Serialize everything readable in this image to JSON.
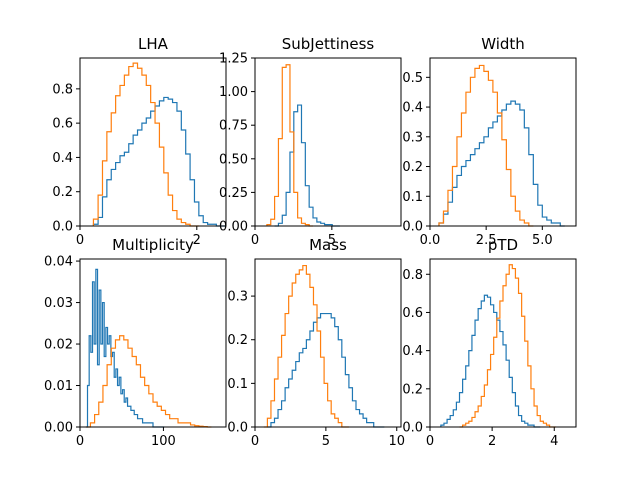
{
  "chart_data": [
    {
      "type": "histogram",
      "title": "LHA",
      "xlim": [
        0,
        2.5
      ],
      "ylim": [
        0,
        0.98
      ],
      "xticks": [
        0,
        2
      ],
      "xtick_labels": [
        "0",
        "2"
      ],
      "yticks": [
        0,
        0.2,
        0.4,
        0.6,
        0.8
      ],
      "ytick_labels": [
        "0.0",
        "0.2",
        "0.4",
        "0.6",
        "0.8"
      ],
      "series": [
        {
          "color": "#1f77b4",
          "x": [
            0.27,
            0.35,
            0.42,
            0.5,
            0.57,
            0.65,
            0.72,
            0.8,
            0.87,
            0.95,
            1.02,
            1.1,
            1.17,
            1.25,
            1.32,
            1.4,
            1.47,
            1.55,
            1.62,
            1.7,
            1.77,
            1.85,
            1.92,
            2.0,
            2.07,
            2.15,
            2.22,
            2.3,
            2.37,
            2.45
          ],
          "y": [
            0.01,
            0.05,
            0.17,
            0.27,
            0.33,
            0.37,
            0.41,
            0.43,
            0.48,
            0.53,
            0.56,
            0.6,
            0.63,
            0.67,
            0.7,
            0.73,
            0.75,
            0.74,
            0.72,
            0.67,
            0.56,
            0.42,
            0.27,
            0.14,
            0.06,
            0.02,
            0.01,
            0.01,
            0.0,
            0.0
          ]
        },
        {
          "color": "#ff7f0e",
          "x": [
            0.27,
            0.35,
            0.42,
            0.5,
            0.57,
            0.65,
            0.72,
            0.8,
            0.87,
            0.95,
            1.02,
            1.1,
            1.17,
            1.25,
            1.32,
            1.4,
            1.47,
            1.55,
            1.62,
            1.7,
            1.77,
            1.85,
            1.92,
            2.0
          ],
          "y": [
            0.04,
            0.18,
            0.38,
            0.55,
            0.66,
            0.76,
            0.82,
            0.88,
            0.93,
            0.95,
            0.92,
            0.88,
            0.82,
            0.72,
            0.6,
            0.46,
            0.31,
            0.18,
            0.09,
            0.04,
            0.02,
            0.01,
            0.0,
            0.0
          ]
        }
      ]
    },
    {
      "type": "histogram",
      "title": "SubJettiness",
      "xlim": [
        0,
        9.5
      ],
      "ylim": [
        0,
        1.25
      ],
      "xticks": [
        0,
        5
      ],
      "xtick_labels": [
        "0",
        "5"
      ],
      "yticks": [
        0,
        0.25,
        0.5,
        0.75,
        1.0,
        1.25
      ],
      "ytick_labels": [
        "0.00",
        "0.25",
        "0.50",
        "0.75",
        "1.00",
        "1.25"
      ],
      "series": [
        {
          "color": "#1f77b4",
          "x": [
            1.4,
            1.65,
            1.9,
            2.15,
            2.4,
            2.65,
            2.9,
            3.15,
            3.4,
            3.65,
            3.9,
            4.15,
            4.4,
            4.65,
            4.9,
            5.15,
            5.4
          ],
          "y": [
            0.0,
            0.02,
            0.08,
            0.25,
            0.55,
            0.85,
            0.9,
            0.62,
            0.3,
            0.14,
            0.06,
            0.03,
            0.02,
            0.01,
            0.01,
            0.0,
            0.0
          ]
        },
        {
          "color": "#ff7f0e",
          "x": [
            0.9,
            1.15,
            1.4,
            1.65,
            1.9,
            2.15,
            2.4,
            2.65,
            2.9,
            3.15,
            3.4,
            3.65
          ],
          "y": [
            0.01,
            0.05,
            0.22,
            0.65,
            1.18,
            1.2,
            0.7,
            0.25,
            0.06,
            0.02,
            0.01,
            0.0
          ]
        }
      ]
    },
    {
      "type": "histogram",
      "title": "Width",
      "xlim": [
        0,
        6.5
      ],
      "ylim": [
        0,
        0.565
      ],
      "xticks": [
        0,
        2.5,
        5
      ],
      "xtick_labels": [
        "0.0",
        "2.5",
        "5.0"
      ],
      "yticks": [
        0,
        0.1,
        0.2,
        0.3,
        0.4,
        0.5
      ],
      "ytick_labels": [
        "0.0",
        "0.1",
        "0.2",
        "0.3",
        "0.4",
        "0.5"
      ],
      "series": [
        {
          "color": "#1f77b4",
          "x": [
            0.5,
            0.7,
            0.9,
            1.1,
            1.3,
            1.5,
            1.7,
            1.9,
            2.1,
            2.3,
            2.5,
            2.7,
            2.9,
            3.1,
            3.3,
            3.5,
            3.7,
            3.9,
            4.1,
            4.3,
            4.5,
            4.7,
            4.9,
            5.1,
            5.3,
            5.5,
            5.7,
            5.9
          ],
          "y": [
            0.01,
            0.04,
            0.08,
            0.13,
            0.17,
            0.2,
            0.22,
            0.24,
            0.26,
            0.28,
            0.3,
            0.33,
            0.35,
            0.37,
            0.39,
            0.41,
            0.42,
            0.41,
            0.39,
            0.33,
            0.24,
            0.14,
            0.07,
            0.03,
            0.02,
            0.01,
            0.01,
            0.0
          ]
        },
        {
          "color": "#ff7f0e",
          "x": [
            0.5,
            0.7,
            0.9,
            1.1,
            1.3,
            1.5,
            1.7,
            1.9,
            2.1,
            2.3,
            2.5,
            2.7,
            2.9,
            3.1,
            3.3,
            3.5,
            3.7,
            3.9,
            4.1,
            4.3,
            4.5
          ],
          "y": [
            0.01,
            0.05,
            0.12,
            0.2,
            0.3,
            0.38,
            0.45,
            0.5,
            0.53,
            0.54,
            0.52,
            0.49,
            0.45,
            0.38,
            0.29,
            0.19,
            0.1,
            0.05,
            0.02,
            0.01,
            0.0
          ]
        }
      ]
    },
    {
      "type": "histogram",
      "title": "Multiplicity",
      "xlim": [
        0,
        175
      ],
      "ylim": [
        0,
        0.0405
      ],
      "xticks": [
        0,
        100
      ],
      "xtick_labels": [
        "0",
        "100"
      ],
      "yticks": [
        0,
        0.01,
        0.02,
        0.03,
        0.04
      ],
      "ytick_labels": [
        "0.00",
        "0.01",
        "0.02",
        "0.03",
        "0.04"
      ],
      "series": [
        {
          "color": "#1f77b4",
          "x": [
            8,
            10,
            12,
            14,
            16,
            18,
            20,
            22,
            24,
            26,
            28,
            30,
            32,
            34,
            36,
            38,
            40,
            42,
            44,
            46,
            48,
            50,
            52,
            54,
            56,
            58,
            60,
            62,
            64,
            66,
            68,
            70,
            72,
            74,
            76,
            78,
            80,
            85,
            90,
            95,
            100
          ],
          "y": [
            0.0,
            0.01,
            0.022,
            0.018,
            0.035,
            0.02,
            0.038,
            0.015,
            0.033,
            0.02,
            0.03,
            0.017,
            0.024,
            0.02,
            0.022,
            0.017,
            0.018,
            0.012,
            0.014,
            0.01,
            0.012,
            0.008,
            0.009,
            0.006,
            0.007,
            0.005,
            0.005,
            0.004,
            0.004,
            0.003,
            0.003,
            0.002,
            0.002,
            0.002,
            0.001,
            0.001,
            0.001,
            0.001,
            0.0,
            0.0,
            0.0
          ]
        },
        {
          "color": "#ff7f0e",
          "x": [
            10,
            15,
            20,
            25,
            30,
            35,
            40,
            45,
            50,
            55,
            60,
            65,
            70,
            75,
            80,
            85,
            90,
            95,
            100,
            105,
            110,
            115,
            120,
            125,
            130,
            135,
            140,
            145,
            150,
            155
          ],
          "y": [
            0.0,
            0.001,
            0.003,
            0.006,
            0.01,
            0.015,
            0.019,
            0.021,
            0.022,
            0.021,
            0.019,
            0.017,
            0.015,
            0.012,
            0.01,
            0.008,
            0.006,
            0.005,
            0.004,
            0.003,
            0.002,
            0.002,
            0.001,
            0.001,
            0.001,
            0.0005,
            0.0003,
            0.0002,
            0.0001,
            0.0
          ]
        }
      ]
    },
    {
      "type": "histogram",
      "title": "Mass",
      "xlim": [
        0,
        10.3
      ],
      "ylim": [
        0,
        0.385
      ],
      "xticks": [
        0,
        5,
        10
      ],
      "xtick_labels": [
        "0",
        "5",
        "10"
      ],
      "yticks": [
        0,
        0.1,
        0.2,
        0.3
      ],
      "ytick_labels": [
        "0.0",
        "0.1",
        "0.2",
        "0.3"
      ],
      "series": [
        {
          "color": "#1f77b4",
          "x": [
            1.0,
            1.25,
            1.5,
            1.75,
            2.0,
            2.25,
            2.5,
            2.75,
            3.0,
            3.25,
            3.5,
            3.75,
            4.0,
            4.25,
            4.5,
            4.75,
            5.0,
            5.25,
            5.5,
            5.75,
            6.0,
            6.25,
            6.5,
            6.75,
            7.0,
            7.25,
            7.5,
            7.75,
            8.0,
            8.25,
            8.5,
            8.75,
            9.0
          ],
          "y": [
            0.0,
            0.01,
            0.02,
            0.04,
            0.06,
            0.09,
            0.11,
            0.13,
            0.15,
            0.17,
            0.18,
            0.2,
            0.22,
            0.24,
            0.25,
            0.26,
            0.26,
            0.26,
            0.25,
            0.23,
            0.2,
            0.16,
            0.12,
            0.09,
            0.06,
            0.04,
            0.03,
            0.02,
            0.01,
            0.01,
            0.0,
            0.0,
            0.0
          ]
        },
        {
          "color": "#ff7f0e",
          "x": [
            0.75,
            1.0,
            1.25,
            1.5,
            1.75,
            2.0,
            2.25,
            2.5,
            2.75,
            3.0,
            3.25,
            3.5,
            3.75,
            4.0,
            4.25,
            4.5,
            4.75,
            5.0,
            5.25,
            5.5,
            5.75,
            6.0,
            6.25,
            6.5
          ],
          "y": [
            0.0,
            0.02,
            0.06,
            0.11,
            0.16,
            0.21,
            0.26,
            0.3,
            0.33,
            0.35,
            0.36,
            0.37,
            0.35,
            0.32,
            0.28,
            0.22,
            0.16,
            0.1,
            0.06,
            0.03,
            0.02,
            0.01,
            0.0,
            0.0
          ]
        }
      ]
    },
    {
      "type": "histogram",
      "title": "pTD",
      "xlim": [
        0,
        4.7
      ],
      "ylim": [
        0,
        0.88
      ],
      "xticks": [
        0,
        2,
        4
      ],
      "xtick_labels": [
        "0",
        "2",
        "4"
      ],
      "yticks": [
        0,
        0.2,
        0.4,
        0.6,
        0.8
      ],
      "ytick_labels": [
        "0.0",
        "0.2",
        "0.4",
        "0.6",
        "0.8"
      ],
      "series": [
        {
          "color": "#1f77b4",
          "x": [
            0.4,
            0.5,
            0.6,
            0.7,
            0.8,
            0.9,
            1.0,
            1.1,
            1.2,
            1.3,
            1.4,
            1.5,
            1.6,
            1.7,
            1.8,
            1.9,
            2.0,
            2.1,
            2.2,
            2.3,
            2.4,
            2.5,
            2.6,
            2.7,
            2.8,
            2.9,
            3.0,
            3.1,
            3.2,
            3.3,
            3.4,
            3.5
          ],
          "y": [
            0.01,
            0.02,
            0.04,
            0.06,
            0.09,
            0.13,
            0.18,
            0.25,
            0.32,
            0.4,
            0.48,
            0.56,
            0.62,
            0.66,
            0.69,
            0.68,
            0.64,
            0.6,
            0.56,
            0.5,
            0.43,
            0.35,
            0.26,
            0.18,
            0.11,
            0.06,
            0.03,
            0.02,
            0.01,
            0.01,
            0.0,
            0.0
          ]
        },
        {
          "color": "#ff7f0e",
          "x": [
            1.0,
            1.1,
            1.2,
            1.3,
            1.4,
            1.5,
            1.6,
            1.7,
            1.8,
            1.9,
            2.0,
            2.1,
            2.2,
            2.3,
            2.4,
            2.5,
            2.6,
            2.7,
            2.8,
            2.9,
            3.0,
            3.1,
            3.2,
            3.3,
            3.4,
            3.5,
            3.6,
            3.7,
            3.8,
            3.9,
            4.0
          ],
          "y": [
            0.0,
            0.01,
            0.02,
            0.03,
            0.05,
            0.08,
            0.11,
            0.16,
            0.22,
            0.3,
            0.38,
            0.47,
            0.57,
            0.66,
            0.74,
            0.8,
            0.85,
            0.83,
            0.78,
            0.7,
            0.58,
            0.45,
            0.32,
            0.2,
            0.11,
            0.06,
            0.03,
            0.02,
            0.01,
            0.0,
            0.0
          ]
        }
      ]
    }
  ]
}
